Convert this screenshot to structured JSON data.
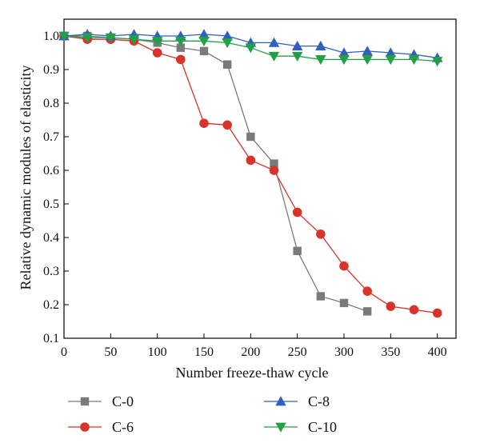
{
  "chart_data": {
    "type": "line",
    "title": "",
    "xlabel": "Number freeze-thaw cycle",
    "ylabel": "Relative dynamic modules of elasticity",
    "xlim": [
      0,
      420
    ],
    "ylim": [
      0.1,
      1.05
    ],
    "x_ticks": [
      0,
      50,
      100,
      150,
      200,
      250,
      300,
      350,
      400
    ],
    "y_ticks": [
      0.1,
      0.2,
      0.3,
      0.4,
      0.5,
      0.6,
      0.7,
      0.8,
      0.9,
      1.0
    ],
    "x_tick_labels": [
      "0",
      "50",
      "100",
      "150",
      "200",
      "250",
      "300",
      "350",
      "400"
    ],
    "y_tick_labels": [
      "0.1",
      "0.2",
      "0.3",
      "0.4",
      "0.5",
      "0.6",
      "0.7",
      "0.8",
      "0.9",
      "1.0"
    ],
    "grid": false,
    "legend_position": "bottom",
    "series": [
      {
        "name": "C-0",
        "marker": "square",
        "color": "#7a7a7a",
        "x": [
          0,
          25,
          50,
          75,
          100,
          125,
          150,
          175,
          200,
          225,
          250,
          275,
          300,
          325
        ],
        "y": [
          1.0,
          1.0,
          0.995,
          0.99,
          0.98,
          0.965,
          0.955,
          0.915,
          0.7,
          0.62,
          0.36,
          0.225,
          0.205,
          0.18
        ]
      },
      {
        "name": "C-6",
        "marker": "circle",
        "color": "#d9342b",
        "x": [
          0,
          25,
          50,
          75,
          100,
          125,
          150,
          175,
          200,
          225,
          250,
          275,
          300,
          325,
          350,
          375,
          400
        ],
        "y": [
          1.0,
          0.99,
          0.99,
          0.985,
          0.95,
          0.93,
          0.74,
          0.735,
          0.63,
          0.6,
          0.475,
          0.41,
          0.315,
          0.24,
          0.195,
          0.185,
          0.175
        ]
      },
      {
        "name": "C-8",
        "marker": "triangle-up",
        "color": "#2f5fbf",
        "x": [
          0,
          25,
          50,
          75,
          100,
          125,
          150,
          175,
          200,
          225,
          250,
          275,
          300,
          325,
          350,
          375,
          400
        ],
        "y": [
          1.0,
          1.005,
          1.0,
          1.005,
          1.0,
          1.0,
          1.005,
          1.0,
          0.98,
          0.98,
          0.97,
          0.97,
          0.95,
          0.955,
          0.95,
          0.945,
          0.935
        ]
      },
      {
        "name": "C-10",
        "marker": "triangle-down",
        "color": "#22a046",
        "x": [
          0,
          25,
          50,
          75,
          100,
          125,
          150,
          175,
          200,
          225,
          250,
          275,
          300,
          325,
          350,
          375,
          400
        ],
        "y": [
          1.0,
          0.995,
          0.995,
          0.99,
          0.985,
          0.985,
          0.985,
          0.98,
          0.965,
          0.94,
          0.94,
          0.93,
          0.93,
          0.93,
          0.93,
          0.93,
          0.925
        ]
      }
    ]
  }
}
